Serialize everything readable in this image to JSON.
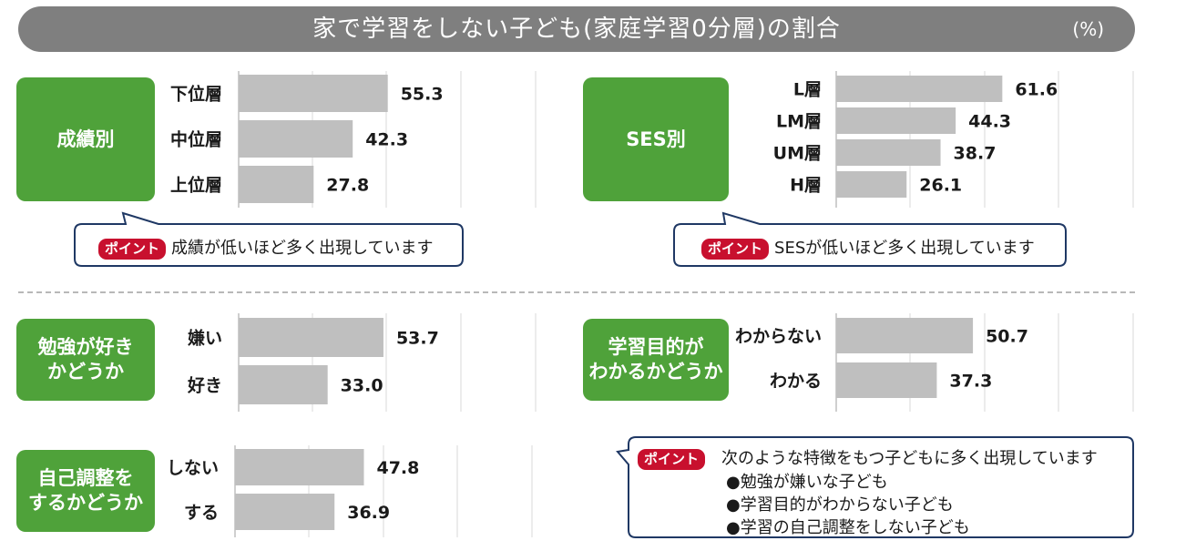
{
  "title": "家で学習をしない子ども(家庭学習0分層)の割合",
  "unit": "(%)",
  "categories": {
    "grades": [
      "成績別"
    ],
    "ses": [
      "SES別"
    ],
    "like_study": [
      "勉強が好き",
      "かどうか"
    ],
    "purpose": [
      "学習目的が",
      "わかるかどうか"
    ],
    "self_regulation": [
      "自己調整を",
      "するかどうか"
    ]
  },
  "chart_data": [
    {
      "type": "bar",
      "orientation": "horizontal",
      "categories": [
        "下位層",
        "中位層",
        "上位層"
      ],
      "values": [
        55.3,
        42.3,
        27.8
      ],
      "xlim": [
        0,
        100
      ]
    },
    {
      "type": "bar",
      "orientation": "horizontal",
      "categories": [
        "L層",
        "LM層",
        "UM層",
        "H層"
      ],
      "values": [
        61.6,
        44.3,
        38.7,
        26.1
      ],
      "xlim": [
        0,
        100
      ]
    },
    {
      "type": "bar",
      "orientation": "horizontal",
      "categories": [
        "嫌い",
        "好き"
      ],
      "values": [
        53.7,
        33.0
      ],
      "xlim": [
        0,
        100
      ]
    },
    {
      "type": "bar",
      "orientation": "horizontal",
      "categories": [
        "わからない",
        "わかる"
      ],
      "values": [
        50.7,
        37.3
      ],
      "xlim": [
        0,
        100
      ]
    },
    {
      "type": "bar",
      "orientation": "horizontal",
      "categories": [
        "しない",
        "する"
      ],
      "values": [
        47.8,
        36.9
      ],
      "xlim": [
        0,
        100
      ]
    }
  ],
  "callouts": {
    "badge": "ポイント",
    "grades": "成績が低いほど多く出現しています",
    "ses": "SESが低いほど多く出現しています",
    "summary_intro": "次のような特徴をもつ子どもに多く出現しています",
    "summary_items": [
      "●勉強が嫌いな子ども",
      "●学習目的がわからない子ども",
      "●学習の自己調整をしない子ども"
    ]
  },
  "colors": {
    "title_bar": "#7f7f7f",
    "category_box": "#4fa23a",
    "bar": "#bfbfbf",
    "badge": "#c8102e",
    "bubble_border": "#1f3864"
  }
}
